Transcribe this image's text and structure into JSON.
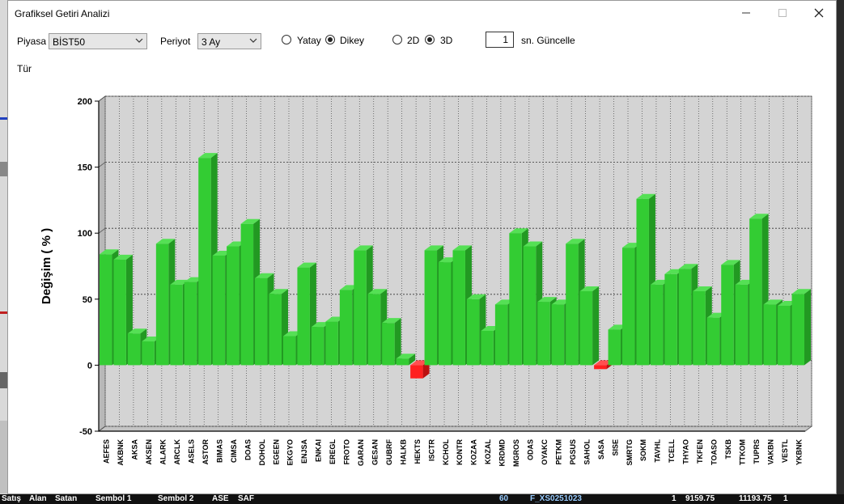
{
  "window": {
    "title": "Grafiksel Getiri Analizi"
  },
  "controls": {
    "market_label": "Piyasa",
    "market_value": "BİST50",
    "period_label": "Periyot",
    "period_value": "3 Ay",
    "horizontal_label": "Yatay",
    "vertical_label": "Dikey",
    "orientation_selected": "Dikey",
    "d2_label": "2D",
    "d3_label": "3D",
    "dimension_selected": "3D",
    "refresh_value": "1",
    "refresh_label": "sn. Güncelle",
    "type_label": "Tür"
  },
  "background": {
    "bottom_items": [
      "Satış",
      "Alan",
      "Satan",
      "Sembol 1",
      "Sembol 2",
      "ASE",
      "SAF",
      "60",
      "F_XS0251023",
      "1",
      "9159.75",
      "11193.75",
      "1"
    ]
  },
  "colors": {
    "positive_bar": "#33cc33",
    "negative_bar": "#ff2020",
    "plot_background": "#d4d4d4"
  },
  "chart_data": {
    "type": "bar",
    "ylabel": "Değişim ( % )",
    "ylim": [
      -50,
      200
    ],
    "yticks": [
      -50,
      0,
      50,
      100,
      150,
      200
    ],
    "grid": true,
    "style": "3d",
    "categories": [
      "AEFES",
      "AKBNK",
      "AKSA",
      "AKSEN",
      "ALARK",
      "ARCLK",
      "ASELS",
      "ASTOR",
      "BIMAS",
      "CIMSA",
      "DOAS",
      "DOHOL",
      "EGEEN",
      "EKGYO",
      "ENJSA",
      "ENKAI",
      "EREGL",
      "FROTO",
      "GARAN",
      "GESAN",
      "GUBRF",
      "HALKB",
      "HEKTS",
      "ISCTR",
      "KCHOL",
      "KONTR",
      "KOZAA",
      "KOZAL",
      "KRDMD",
      "MGROS",
      "ODAS",
      "OYAKC",
      "PETKM",
      "PGSUS",
      "SAHOL",
      "SASA",
      "SISE",
      "SMRTG",
      "SOKM",
      "TAVHL",
      "TCELL",
      "THYAO",
      "TKFEN",
      "TOASO",
      "TSKB",
      "TTKOM",
      "TUPRS",
      "VAKBN",
      "VESTL",
      "YKBNK"
    ],
    "values": [
      84,
      80,
      24,
      18,
      92,
      61,
      63,
      157,
      83,
      90,
      107,
      66,
      54,
      22,
      74,
      29,
      33,
      57,
      87,
      54,
      32,
      5,
      -10,
      87,
      78,
      87,
      50,
      26,
      46,
      100,
      90,
      48,
      46,
      92,
      56,
      -3,
      27,
      89,
      126,
      61,
      69,
      73,
      56,
      36,
      76,
      61,
      111,
      46,
      45,
      54
    ]
  }
}
